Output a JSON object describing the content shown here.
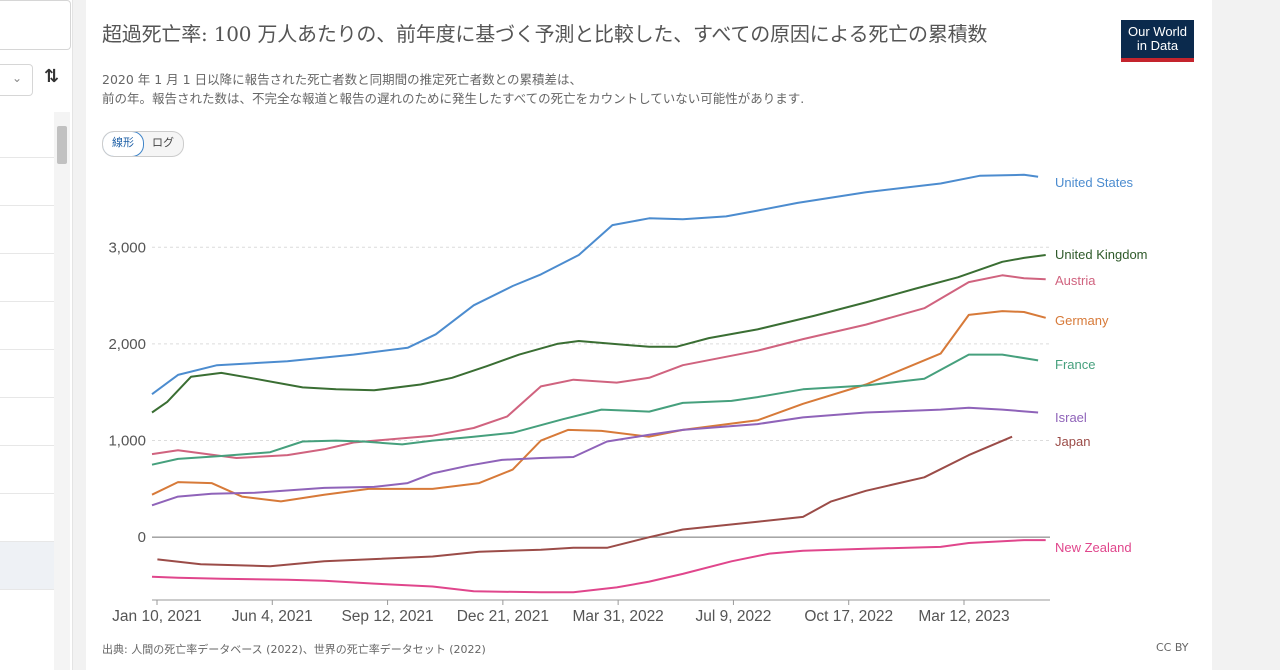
{
  "sidebar": {
    "rows": 10
  },
  "header": {
    "title": "超過死亡率: 100 万人あたりの、前年度に基づく予測と比較した、すべての原因による死亡の累積数",
    "logo_line1": "Our World",
    "logo_line2": "in Data",
    "subtitle_line1": "2020 年 1 月 1 日以降に報告された死亡者数と同期間の推定死亡者数との累積差は、",
    "subtitle_line2": "前の年。報告された数は、不完全な報道と報告の遅れのために発生したすべての死亡をカウントしていない可能性があります."
  },
  "toggle": {
    "linear": "線形",
    "log": "ログ"
  },
  "footer": {
    "source": "出典: 人間の死亡率データベース (2022)、世界の死亡率データセット (2022)",
    "license": "CC BY"
  },
  "chart_data": {
    "type": "line",
    "x_ticks": [
      "Jan 10, 2021",
      "Jun 4, 2021",
      "Sep 12, 2021",
      "Dec 21, 2021",
      "Mar 31, 2022",
      "Jul 9, 2022",
      "Oct 17, 2022",
      "Mar 12, 2023"
    ],
    "y_ticks": [
      0,
      1000,
      2000,
      3000
    ],
    "y_tick_labels": [
      "0",
      "1,000",
      "2,000",
      "3,000"
    ],
    "ylim": [
      -650,
      3800
    ],
    "x_domain": [
      "2020-12-27",
      "2023-04-05"
    ],
    "grid": "horizontal dashed",
    "series": [
      {
        "name": "United States",
        "color": "#4c8ccf",
        "points": [
          [
            "2020-12-27",
            1480
          ],
          [
            "2021-01-20",
            1680
          ],
          [
            "2021-02-25",
            1780
          ],
          [
            "2021-05-01",
            1820
          ],
          [
            "2021-07-01",
            1890
          ],
          [
            "2021-08-20",
            1960
          ],
          [
            "2021-09-15",
            2100
          ],
          [
            "2021-10-20",
            2400
          ],
          [
            "2021-11-25",
            2600
          ],
          [
            "2021-12-21",
            2720
          ],
          [
            "2022-01-25",
            2920
          ],
          [
            "2022-02-25",
            3230
          ],
          [
            "2022-03-31",
            3300
          ],
          [
            "2022-05-01",
            3290
          ],
          [
            "2022-06-10",
            3320
          ],
          [
            "2022-07-09",
            3380
          ],
          [
            "2022-08-15",
            3460
          ],
          [
            "2022-10-17",
            3570
          ],
          [
            "2022-12-25",
            3660
          ],
          [
            "2023-01-30",
            3740
          ],
          [
            "2023-03-12",
            3750
          ],
          [
            "2023-03-25",
            3730
          ]
        ]
      },
      {
        "name": "United Kingdom",
        "color": "#3a6e33",
        "points": [
          [
            "2020-12-27",
            1290
          ],
          [
            "2021-01-10",
            1400
          ],
          [
            "2021-02-01",
            1660
          ],
          [
            "2021-03-01",
            1700
          ],
          [
            "2021-04-01",
            1640
          ],
          [
            "2021-05-15",
            1550
          ],
          [
            "2021-06-15",
            1530
          ],
          [
            "2021-07-20",
            1520
          ],
          [
            "2021-09-01",
            1580
          ],
          [
            "2021-09-30",
            1650
          ],
          [
            "2021-11-01",
            1770
          ],
          [
            "2021-12-01",
            1890
          ],
          [
            "2022-01-05",
            2000
          ],
          [
            "2022-01-25",
            2030
          ],
          [
            "2022-03-31",
            1970
          ],
          [
            "2022-04-25",
            1970
          ],
          [
            "2022-05-25",
            2060
          ],
          [
            "2022-07-09",
            2150
          ],
          [
            "2022-08-30",
            2290
          ],
          [
            "2022-10-17",
            2430
          ],
          [
            "2022-12-01",
            2570
          ],
          [
            "2023-01-10",
            2690
          ],
          [
            "2023-02-20",
            2850
          ],
          [
            "2023-03-12",
            2890
          ],
          [
            "2023-04-01",
            2920
          ]
        ]
      },
      {
        "name": "Austria",
        "color": "#d0637f",
        "points": [
          [
            "2020-12-27",
            860
          ],
          [
            "2021-01-20",
            900
          ],
          [
            "2021-03-15",
            820
          ],
          [
            "2021-05-01",
            850
          ],
          [
            "2021-06-04",
            910
          ],
          [
            "2021-07-01",
            980
          ],
          [
            "2021-09-12",
            1050
          ],
          [
            "2021-10-20",
            1130
          ],
          [
            "2021-11-20",
            1250
          ],
          [
            "2021-12-21",
            1560
          ],
          [
            "2022-01-20",
            1630
          ],
          [
            "2022-03-01",
            1600
          ],
          [
            "2022-03-31",
            1650
          ],
          [
            "2022-05-01",
            1780
          ],
          [
            "2022-07-09",
            1930
          ],
          [
            "2022-08-20",
            2050
          ],
          [
            "2022-10-17",
            2200
          ],
          [
            "2022-12-10",
            2370
          ],
          [
            "2023-01-20",
            2640
          ],
          [
            "2023-02-20",
            2710
          ],
          [
            "2023-03-12",
            2680
          ],
          [
            "2023-04-01",
            2670
          ]
        ]
      },
      {
        "name": "Germany",
        "color": "#d77a39",
        "points": [
          [
            "2020-12-27",
            440
          ],
          [
            "2021-01-20",
            570
          ],
          [
            "2021-02-20",
            560
          ],
          [
            "2021-03-20",
            420
          ],
          [
            "2021-04-25",
            370
          ],
          [
            "2021-06-04",
            440
          ],
          [
            "2021-07-15",
            500
          ],
          [
            "2021-09-12",
            500
          ],
          [
            "2021-10-25",
            560
          ],
          [
            "2021-11-25",
            700
          ],
          [
            "2021-12-21",
            1000
          ],
          [
            "2022-01-15",
            1110
          ],
          [
            "2022-02-15",
            1100
          ],
          [
            "2022-03-31",
            1040
          ],
          [
            "2022-05-01",
            1110
          ],
          [
            "2022-07-09",
            1210
          ],
          [
            "2022-08-20",
            1380
          ],
          [
            "2022-10-17",
            1580
          ],
          [
            "2022-11-25",
            1760
          ],
          [
            "2022-12-25",
            1900
          ],
          [
            "2023-01-20",
            2300
          ],
          [
            "2023-02-20",
            2340
          ],
          [
            "2023-03-12",
            2330
          ],
          [
            "2023-04-01",
            2270
          ]
        ]
      },
      {
        "name": "France",
        "color": "#46a07d",
        "points": [
          [
            "2020-12-27",
            750
          ],
          [
            "2021-01-20",
            810
          ],
          [
            "2021-03-01",
            840
          ],
          [
            "2021-04-15",
            880
          ],
          [
            "2021-05-15",
            990
          ],
          [
            "2021-06-15",
            1000
          ],
          [
            "2021-07-10",
            990
          ],
          [
            "2021-08-15",
            960
          ],
          [
            "2021-09-12",
            1000
          ],
          [
            "2021-10-20",
            1040
          ],
          [
            "2021-11-25",
            1080
          ],
          [
            "2022-01-10",
            1220
          ],
          [
            "2022-02-15",
            1320
          ],
          [
            "2022-03-31",
            1300
          ],
          [
            "2022-05-01",
            1390
          ],
          [
            "2022-06-15",
            1410
          ],
          [
            "2022-07-09",
            1450
          ],
          [
            "2022-08-20",
            1530
          ],
          [
            "2022-10-17",
            1570
          ],
          [
            "2022-12-10",
            1640
          ],
          [
            "2023-01-20",
            1890
          ],
          [
            "2023-02-20",
            1890
          ],
          [
            "2023-03-25",
            1830
          ]
        ]
      },
      {
        "name": "Israel",
        "color": "#8f63b9",
        "points": [
          [
            "2020-12-27",
            330
          ],
          [
            "2021-01-20",
            420
          ],
          [
            "2021-02-20",
            450
          ],
          [
            "2021-04-01",
            460
          ],
          [
            "2021-06-04",
            510
          ],
          [
            "2021-07-20",
            520
          ],
          [
            "2021-08-20",
            560
          ],
          [
            "2021-09-12",
            660
          ],
          [
            "2021-10-15",
            740
          ],
          [
            "2021-11-15",
            800
          ],
          [
            "2021-12-21",
            820
          ],
          [
            "2022-01-20",
            830
          ],
          [
            "2022-02-20",
            990
          ],
          [
            "2022-03-31",
            1060
          ],
          [
            "2022-05-01",
            1110
          ],
          [
            "2022-07-09",
            1170
          ],
          [
            "2022-08-20",
            1240
          ],
          [
            "2022-10-17",
            1290
          ],
          [
            "2022-12-25",
            1320
          ],
          [
            "2023-01-20",
            1340
          ],
          [
            "2023-02-20",
            1320
          ],
          [
            "2023-03-25",
            1290
          ]
        ]
      },
      {
        "name": "Japan",
        "color": "#9b4c48",
        "points": [
          [
            "2021-01-01",
            -230
          ],
          [
            "2021-02-10",
            -280
          ],
          [
            "2021-04-15",
            -300
          ],
          [
            "2021-06-04",
            -250
          ],
          [
            "2021-09-12",
            -200
          ],
          [
            "2021-10-25",
            -150
          ],
          [
            "2021-12-21",
            -130
          ],
          [
            "2022-01-20",
            -110
          ],
          [
            "2022-02-20",
            -110
          ],
          [
            "2022-03-31",
            0
          ],
          [
            "2022-05-01",
            80
          ],
          [
            "2022-07-09",
            160
          ],
          [
            "2022-08-20",
            210
          ],
          [
            "2022-09-15",
            370
          ],
          [
            "2022-10-17",
            480
          ],
          [
            "2022-12-10",
            620
          ],
          [
            "2023-01-20",
            850
          ],
          [
            "2023-03-01",
            1040
          ]
        ]
      },
      {
        "name": "New Zealand",
        "color": "#e0468c",
        "points": [
          [
            "2020-12-27",
            -410
          ],
          [
            "2021-01-20",
            -420
          ],
          [
            "2021-03-01",
            -430
          ],
          [
            "2021-05-01",
            -440
          ],
          [
            "2021-06-04",
            -450
          ],
          [
            "2021-07-20",
            -480
          ],
          [
            "2021-09-12",
            -510
          ],
          [
            "2021-10-20",
            -560
          ],
          [
            "2021-12-21",
            -570
          ],
          [
            "2022-01-20",
            -570
          ],
          [
            "2022-03-01",
            -520
          ],
          [
            "2022-03-31",
            -460
          ],
          [
            "2022-05-01",
            -380
          ],
          [
            "2022-06-15",
            -250
          ],
          [
            "2022-07-20",
            -170
          ],
          [
            "2022-08-20",
            -140
          ],
          [
            "2022-10-17",
            -120
          ],
          [
            "2022-12-25",
            -100
          ],
          [
            "2023-01-20",
            -60
          ],
          [
            "2023-03-12",
            -30
          ],
          [
            "2023-04-01",
            -30
          ]
        ]
      }
    ]
  }
}
